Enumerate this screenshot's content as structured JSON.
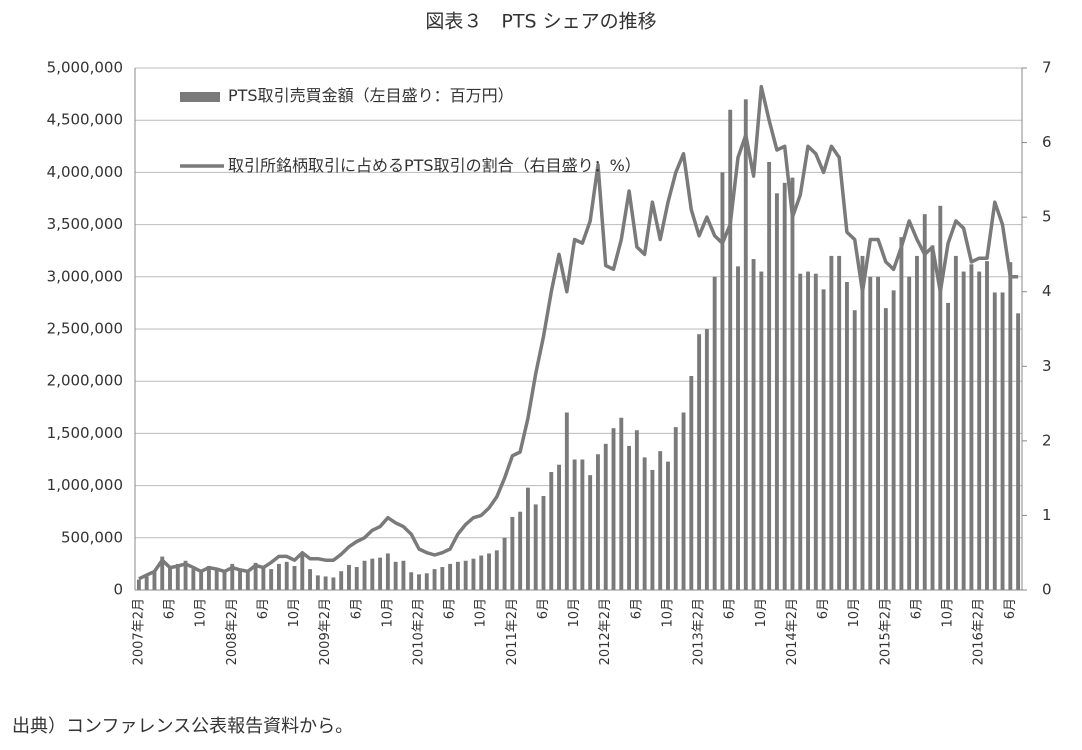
{
  "chart_data": {
    "type": "bar_line",
    "title": "図表３　PTS シェアの推移",
    "source": "出典）コンファレンス公表報告資料から。",
    "categories": [
      "2007年2月",
      null,
      null,
      null,
      "6月",
      null,
      null,
      null,
      "10月",
      null,
      null,
      null,
      "2008年2月",
      null,
      null,
      null,
      "6月",
      null,
      null,
      null,
      "10月",
      null,
      null,
      null,
      "2009年2月",
      null,
      null,
      null,
      "6月",
      null,
      null,
      null,
      "10月",
      null,
      null,
      null,
      "2010年2月",
      null,
      null,
      null,
      "6月",
      null,
      null,
      null,
      "10月",
      null,
      null,
      null,
      "2011年2月",
      null,
      null,
      null,
      "6月",
      null,
      null,
      null,
      "10月",
      null,
      null,
      null,
      "2012年2月",
      null,
      null,
      null,
      "6月",
      null,
      null,
      null,
      "10月",
      null,
      null,
      null,
      "2013年2月",
      null,
      null,
      null,
      "6月",
      null,
      null,
      null,
      "10月",
      null,
      null,
      null,
      "2014年2月",
      null,
      null,
      null,
      "6月",
      null,
      null,
      null,
      "10月",
      null,
      null,
      null,
      "2015年2月",
      null,
      null,
      null,
      "6月",
      null,
      null,
      null,
      "10月",
      null,
      null,
      null,
      "2016年2月",
      null,
      null,
      null,
      "6月",
      null
    ],
    "series": [
      {
        "name": "PTS取引売買金額（左目盛り：百万円）",
        "color": "#7a7a7a",
        "kind": "bar",
        "values": [
          100000,
          130000,
          180000,
          320000,
          220000,
          250000,
          280000,
          200000,
          170000,
          230000,
          200000,
          180000,
          250000,
          200000,
          170000,
          260000,
          210000,
          200000,
          250000,
          270000,
          230000,
          360000,
          200000,
          140000,
          130000,
          120000,
          180000,
          240000,
          220000,
          280000,
          300000,
          310000,
          350000,
          270000,
          280000,
          170000,
          150000,
          160000,
          200000,
          220000,
          250000,
          270000,
          280000,
          300000,
          330000,
          350000,
          380000,
          500000,
          700000,
          750000,
          980000,
          820000,
          900000,
          1130000,
          1200000,
          1700000,
          1250000,
          1250000,
          1100000,
          1300000,
          1400000,
          1550000,
          1650000,
          1380000,
          1530000,
          1270000,
          1150000,
          1330000,
          1230000,
          1560000,
          1700000,
          2050000,
          2450000,
          2500000,
          3000000,
          4000000,
          4600000,
          3100000,
          4700000,
          3170000,
          3050000,
          4100000,
          3800000,
          3900000,
          3950000,
          3030000,
          3050000,
          3030000,
          2880000,
          3200000,
          3200000,
          2950000,
          2680000,
          3200000,
          3000000,
          3000000,
          2700000,
          2870000,
          3380000,
          3000000,
          3200000,
          3600000,
          3300000,
          3680000,
          2750000,
          3200000,
          3050000,
          3120000,
          3050000,
          3150000,
          2850000,
          2850000,
          3140000,
          2650000
        ]
      },
      {
        "name": "取引所銘柄取引に占めるPTS取引の割合（右目盛り：%）",
        "color": "#7a7a7a",
        "kind": "line",
        "axis": "y2",
        "values": [
          0.15,
          0.2,
          0.25,
          0.4,
          0.3,
          0.32,
          0.35,
          0.3,
          0.25,
          0.3,
          0.28,
          0.25,
          0.3,
          0.27,
          0.25,
          0.33,
          0.3,
          0.37,
          0.45,
          0.45,
          0.4,
          0.5,
          0.42,
          0.42,
          0.4,
          0.4,
          0.48,
          0.58,
          0.65,
          0.7,
          0.8,
          0.85,
          0.97,
          0.9,
          0.85,
          0.75,
          0.55,
          0.5,
          0.47,
          0.5,
          0.55,
          0.75,
          0.88,
          0.97,
          1.0,
          1.1,
          1.25,
          1.5,
          1.8,
          1.85,
          2.3,
          2.9,
          3.4,
          4.0,
          4.5,
          4.0,
          4.7,
          4.65,
          4.95,
          5.7,
          4.35,
          4.3,
          4.7,
          5.35,
          4.6,
          4.5,
          5.2,
          4.7,
          5.2,
          5.6,
          5.85,
          5.1,
          4.75,
          5.0,
          4.75,
          4.65,
          4.9,
          5.8,
          6.1,
          5.55,
          6.75,
          6.3,
          5.9,
          5.95,
          5.0,
          5.3,
          5.95,
          5.85,
          5.6,
          5.95,
          5.8,
          4.8,
          4.7,
          4.0,
          4.7,
          4.7,
          4.4,
          4.3,
          4.6,
          4.95,
          4.7,
          4.5,
          4.6,
          4.0,
          4.65,
          4.95,
          4.85,
          4.4,
          4.45,
          4.45,
          5.2,
          4.9,
          4.2,
          4.2
        ]
      }
    ],
    "ylim": [
      0,
      5000000
    ],
    "yticks": [
      0,
      {
        "value": 500000,
        "label": "500,000"
      },
      {
        "value": 1000000,
        "label": "1,000,000"
      },
      {
        "value": 1500000,
        "label": "1,500,000"
      },
      {
        "value": 2000000,
        "label": "2,000,000"
      },
      {
        "value": 2500000,
        "label": "2,500,000"
      },
      {
        "value": 3000000,
        "label": "3,000,000"
      },
      {
        "value": 3500000,
        "label": "3,500,000"
      },
      {
        "value": 4000000,
        "label": "4,000,000"
      },
      {
        "value": 4500000,
        "label": "4,500,000"
      },
      {
        "value": 5000000,
        "label": "5,000,000"
      }
    ],
    "y2lim": [
      0,
      7
    ],
    "y2ticks": [
      0,
      1,
      2,
      3,
      4,
      5,
      6,
      7
    ],
    "grid": true
  }
}
